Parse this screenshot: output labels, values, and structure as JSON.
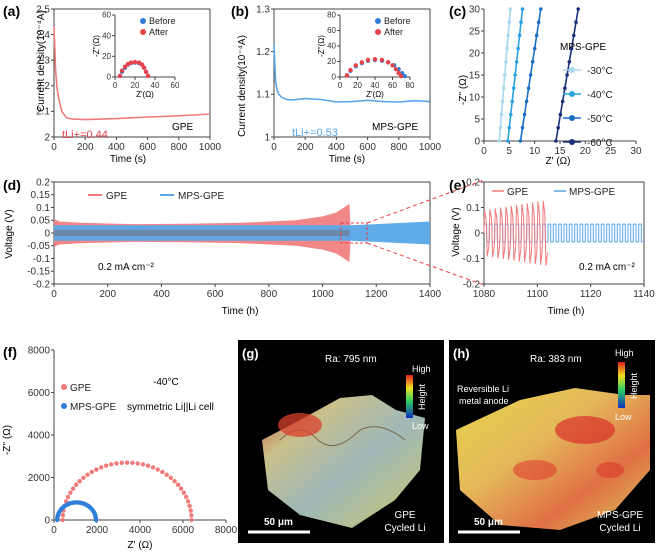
{
  "colors": {
    "gpe": "#f07a7a",
    "gpe_dark": "#e8424a",
    "mps": "#5aa6e8",
    "before": "#2f7fd8",
    "after": "#e8424a",
    "t30": "#a8d8f0",
    "t40": "#29a3e0",
    "t50": "#1a6fc4",
    "t60": "#1b2f7a"
  },
  "chart_data": [
    {
      "id": "a",
      "type": "line",
      "panel_label": "(a)",
      "ylabel": "Current density(10⁻⁴A)",
      "xlabel": "Time (s)",
      "xlim": [
        0,
        1000
      ],
      "ylim": [
        2.0,
        2.5
      ],
      "xticks": [
        "0",
        "200",
        "400",
        "600",
        "800",
        "1000"
      ],
      "yticks": [
        "2",
        "2.1",
        "2.2",
        "2.3",
        "2.4",
        "2.5"
      ],
      "annotation": "tLi+=0.44",
      "tag": "GPE",
      "series": [
        {
          "name": "GPE",
          "x": [
            0,
            5,
            10,
            20,
            30,
            50,
            80,
            120,
            200,
            300,
            400,
            500,
            600,
            700,
            800,
            900,
            1000
          ],
          "y": [
            2.43,
            2.35,
            2.26,
            2.19,
            2.15,
            2.1,
            2.075,
            2.07,
            2.068,
            2.07,
            2.072,
            2.075,
            2.078,
            2.08,
            2.083,
            2.086,
            2.09
          ]
        }
      ],
      "inset": {
        "xlabel": "Z'(Ω)",
        "ylabel": "-Z''(Ω)",
        "xlim": [
          0,
          60
        ],
        "ylim": [
          0,
          60
        ],
        "xticks": [
          "0",
          "20",
          "40",
          "60"
        ],
        "yticks": [
          "0",
          "20",
          "40",
          "60"
        ],
        "legend": [
          "Before",
          "After"
        ],
        "series": [
          {
            "name": "Before",
            "x": [
              5,
              7,
              10,
              13,
              16,
              20,
              24,
              27,
              29,
              31,
              33
            ],
            "y": [
              1,
              5,
              9,
              12,
              13.5,
              14,
              13.5,
              12,
              9,
              5,
              1
            ]
          },
          {
            "name": "After",
            "x": [
              5,
              7,
              10,
              13,
              16,
              20,
              24,
              27,
              29,
              31,
              33
            ],
            "y": [
              1,
              6,
              10,
              12.5,
              14,
              14.5,
              14,
              12,
              9,
              5,
              1
            ]
          }
        ]
      }
    },
    {
      "id": "b",
      "type": "line",
      "panel_label": "(b)",
      "ylabel": "Current density(10⁻⁴A)",
      "xlabel": "Time (s)",
      "xlim": [
        0,
        1000
      ],
      "ylim": [
        1.0,
        1.3
      ],
      "xticks": [
        "0",
        "200",
        "400",
        "600",
        "800",
        "1000"
      ],
      "yticks": [
        "1",
        "1.1",
        "1.2",
        "1.3"
      ],
      "annotation": "tLi+=0.53",
      "tag": "MPS-GPE",
      "series": [
        {
          "name": "MPS-GPE",
          "x": [
            0,
            5,
            10,
            20,
            30,
            50,
            80,
            120,
            200,
            300,
            400,
            500,
            600,
            700,
            800,
            900,
            1000
          ],
          "y": [
            1.22,
            1.17,
            1.13,
            1.11,
            1.1,
            1.093,
            1.088,
            1.087,
            1.09,
            1.088,
            1.082,
            1.083,
            1.086,
            1.083,
            1.082,
            1.085,
            1.083
          ]
        }
      ],
      "inset": {
        "xlabel": "Z'(Ω)",
        "ylabel": "-Z''(Ω)",
        "xlim": [
          0,
          80
        ],
        "ylim": [
          0,
          80
        ],
        "xticks": [
          "0",
          "20",
          "40",
          "60",
          "80"
        ],
        "yticks": [
          "0",
          "20",
          "40",
          "60",
          "80"
        ],
        "legend": [
          "Before",
          "After"
        ],
        "series": [
          {
            "name": "Before",
            "x": [
              8,
              12,
              18,
              25,
              32,
              40,
              48,
              55,
              62,
              67,
              71,
              74
            ],
            "y": [
              2,
              8,
              14,
              18,
              21,
              22,
              21,
              19,
              15,
              10,
              5,
              1
            ]
          },
          {
            "name": "After",
            "x": [
              8,
              12,
              18,
              25,
              32,
              40,
              48,
              55,
              60,
              64,
              67,
              70
            ],
            "y": [
              2,
              9,
              15,
              19,
              22,
              23,
              22,
              19,
              15,
              10,
              5,
              1
            ]
          }
        ]
      }
    },
    {
      "id": "c",
      "type": "line",
      "panel_label": "(c)",
      "ylabel": "-Z'' (Ω)",
      "xlabel": "Z' (Ω)",
      "xlim": [
        0,
        30
      ],
      "ylim": [
        0,
        30
      ],
      "xticks": [
        "0",
        "5",
        "10",
        "15",
        "20",
        "25",
        "30"
      ],
      "yticks": [
        "0",
        "5",
        "10",
        "15",
        "20",
        "25",
        "30"
      ],
      "legend_title": "MPS-GPE",
      "series": [
        {
          "name": "-30°C",
          "x": [
            3.0,
            5.2
          ],
          "y": [
            0,
            30
          ]
        },
        {
          "name": "-40°C",
          "x": [
            4.7,
            7.6
          ],
          "y": [
            0,
            30
          ]
        },
        {
          "name": "-50°C",
          "x": [
            7.2,
            11.2
          ],
          "y": [
            0,
            30
          ]
        },
        {
          "name": "-60°C",
          "x": [
            14.2,
            18.6
          ],
          "y": [
            0,
            30
          ]
        }
      ]
    },
    {
      "id": "d",
      "type": "area",
      "panel_label": "(d)",
      "ylabel": "Voltage (V)",
      "xlabel": "Time (h)",
      "xlim": [
        0,
        1400
      ],
      "ylim": [
        -0.2,
        0.2
      ],
      "xticks": [
        "0",
        "200",
        "400",
        "600",
        "800",
        "1000",
        "1200",
        "1400"
      ],
      "yticks": [
        "-0.2",
        "-0.15",
        "-0.1",
        "-0.05",
        "0",
        "0.05",
        "0.1",
        "0.15",
        "0.2"
      ],
      "legend": [
        "GPE",
        "MPS-GPE"
      ],
      "annotation": "0.2 mA cm⁻²",
      "series": [
        {
          "name": "GPE",
          "x": [
            0,
            20,
            100,
            300,
            500,
            700,
            900,
            1000,
            1050,
            1080,
            1100,
            1105
          ],
          "y": [
            0.055,
            0.045,
            0.04,
            0.035,
            0.036,
            0.04,
            0.05,
            0.065,
            0.08,
            0.1,
            0.115,
            0.0
          ]
        },
        {
          "name": "MPS-GPE",
          "x": [
            0,
            400,
            800,
            1100,
            1200,
            1400
          ],
          "y": [
            0.03,
            0.03,
            0.03,
            0.03,
            0.035,
            0.045
          ]
        }
      ]
    },
    {
      "id": "e",
      "type": "line",
      "panel_label": "(e)",
      "ylabel": "Voltage (V)",
      "xlabel": "Time (h)",
      "xlim": [
        1080,
        1140
      ],
      "ylim": [
        -0.2,
        0.2
      ],
      "xticks": [
        "1080",
        "1100",
        "1120",
        "1140"
      ],
      "yticks": [
        "-0.2",
        "-0.1",
        "0",
        "0.1",
        "0.2"
      ],
      "legend": [
        "GPE",
        "MPS-GPE"
      ],
      "annotation": "0.2 mA cm⁻²",
      "series": [
        {
          "name": "GPE",
          "x_end": 1104,
          "amplitude_start": 0.09,
          "amplitude_end": 0.13
        },
        {
          "name": "MPS-GPE",
          "x_start": 1080,
          "x_end": 1140,
          "amplitude": 0.035
        }
      ]
    },
    {
      "id": "f",
      "type": "scatter",
      "panel_label": "(f)",
      "ylabel": "-Z'' (Ω)",
      "xlabel": "Z' (Ω)",
      "xlim": [
        0,
        8000
      ],
      "ylim": [
        0,
        8000
      ],
      "xticks": [
        "0",
        "2000",
        "4000",
        "6000",
        "8000"
      ],
      "yticks": [
        "0",
        "2000",
        "4000",
        "6000",
        "8000"
      ],
      "legend": [
        "GPE",
        "MPS-GPE"
      ],
      "annotation_1": "-40°C",
      "annotation_2": "symmetric Li||Li cell",
      "series": [
        {
          "name": "GPE",
          "center": 3400,
          "radius": 3000,
          "yscale": 0.9
        },
        {
          "name": "MPS-GPE",
          "center": 1050,
          "radius": 900,
          "yscale": 0.92
        }
      ]
    }
  ],
  "afm_g": {
    "panel_label": "(g)",
    "ra": "Ra: 795 nm",
    "high": "High",
    "low": "Low",
    "height": "Height",
    "scale": "50 μm",
    "caption_1": "GPE",
    "caption_2": "Cycled Li"
  },
  "afm_h": {
    "panel_label": "(h)",
    "ra": "Ra: 383 nm",
    "high": "High",
    "low": "Low",
    "height": "Height",
    "scale": "50 μm",
    "note_1": "Reversible Li",
    "note_2": "metal anode",
    "caption_1": "MPS-GPE",
    "caption_2": "Cycled Li"
  }
}
